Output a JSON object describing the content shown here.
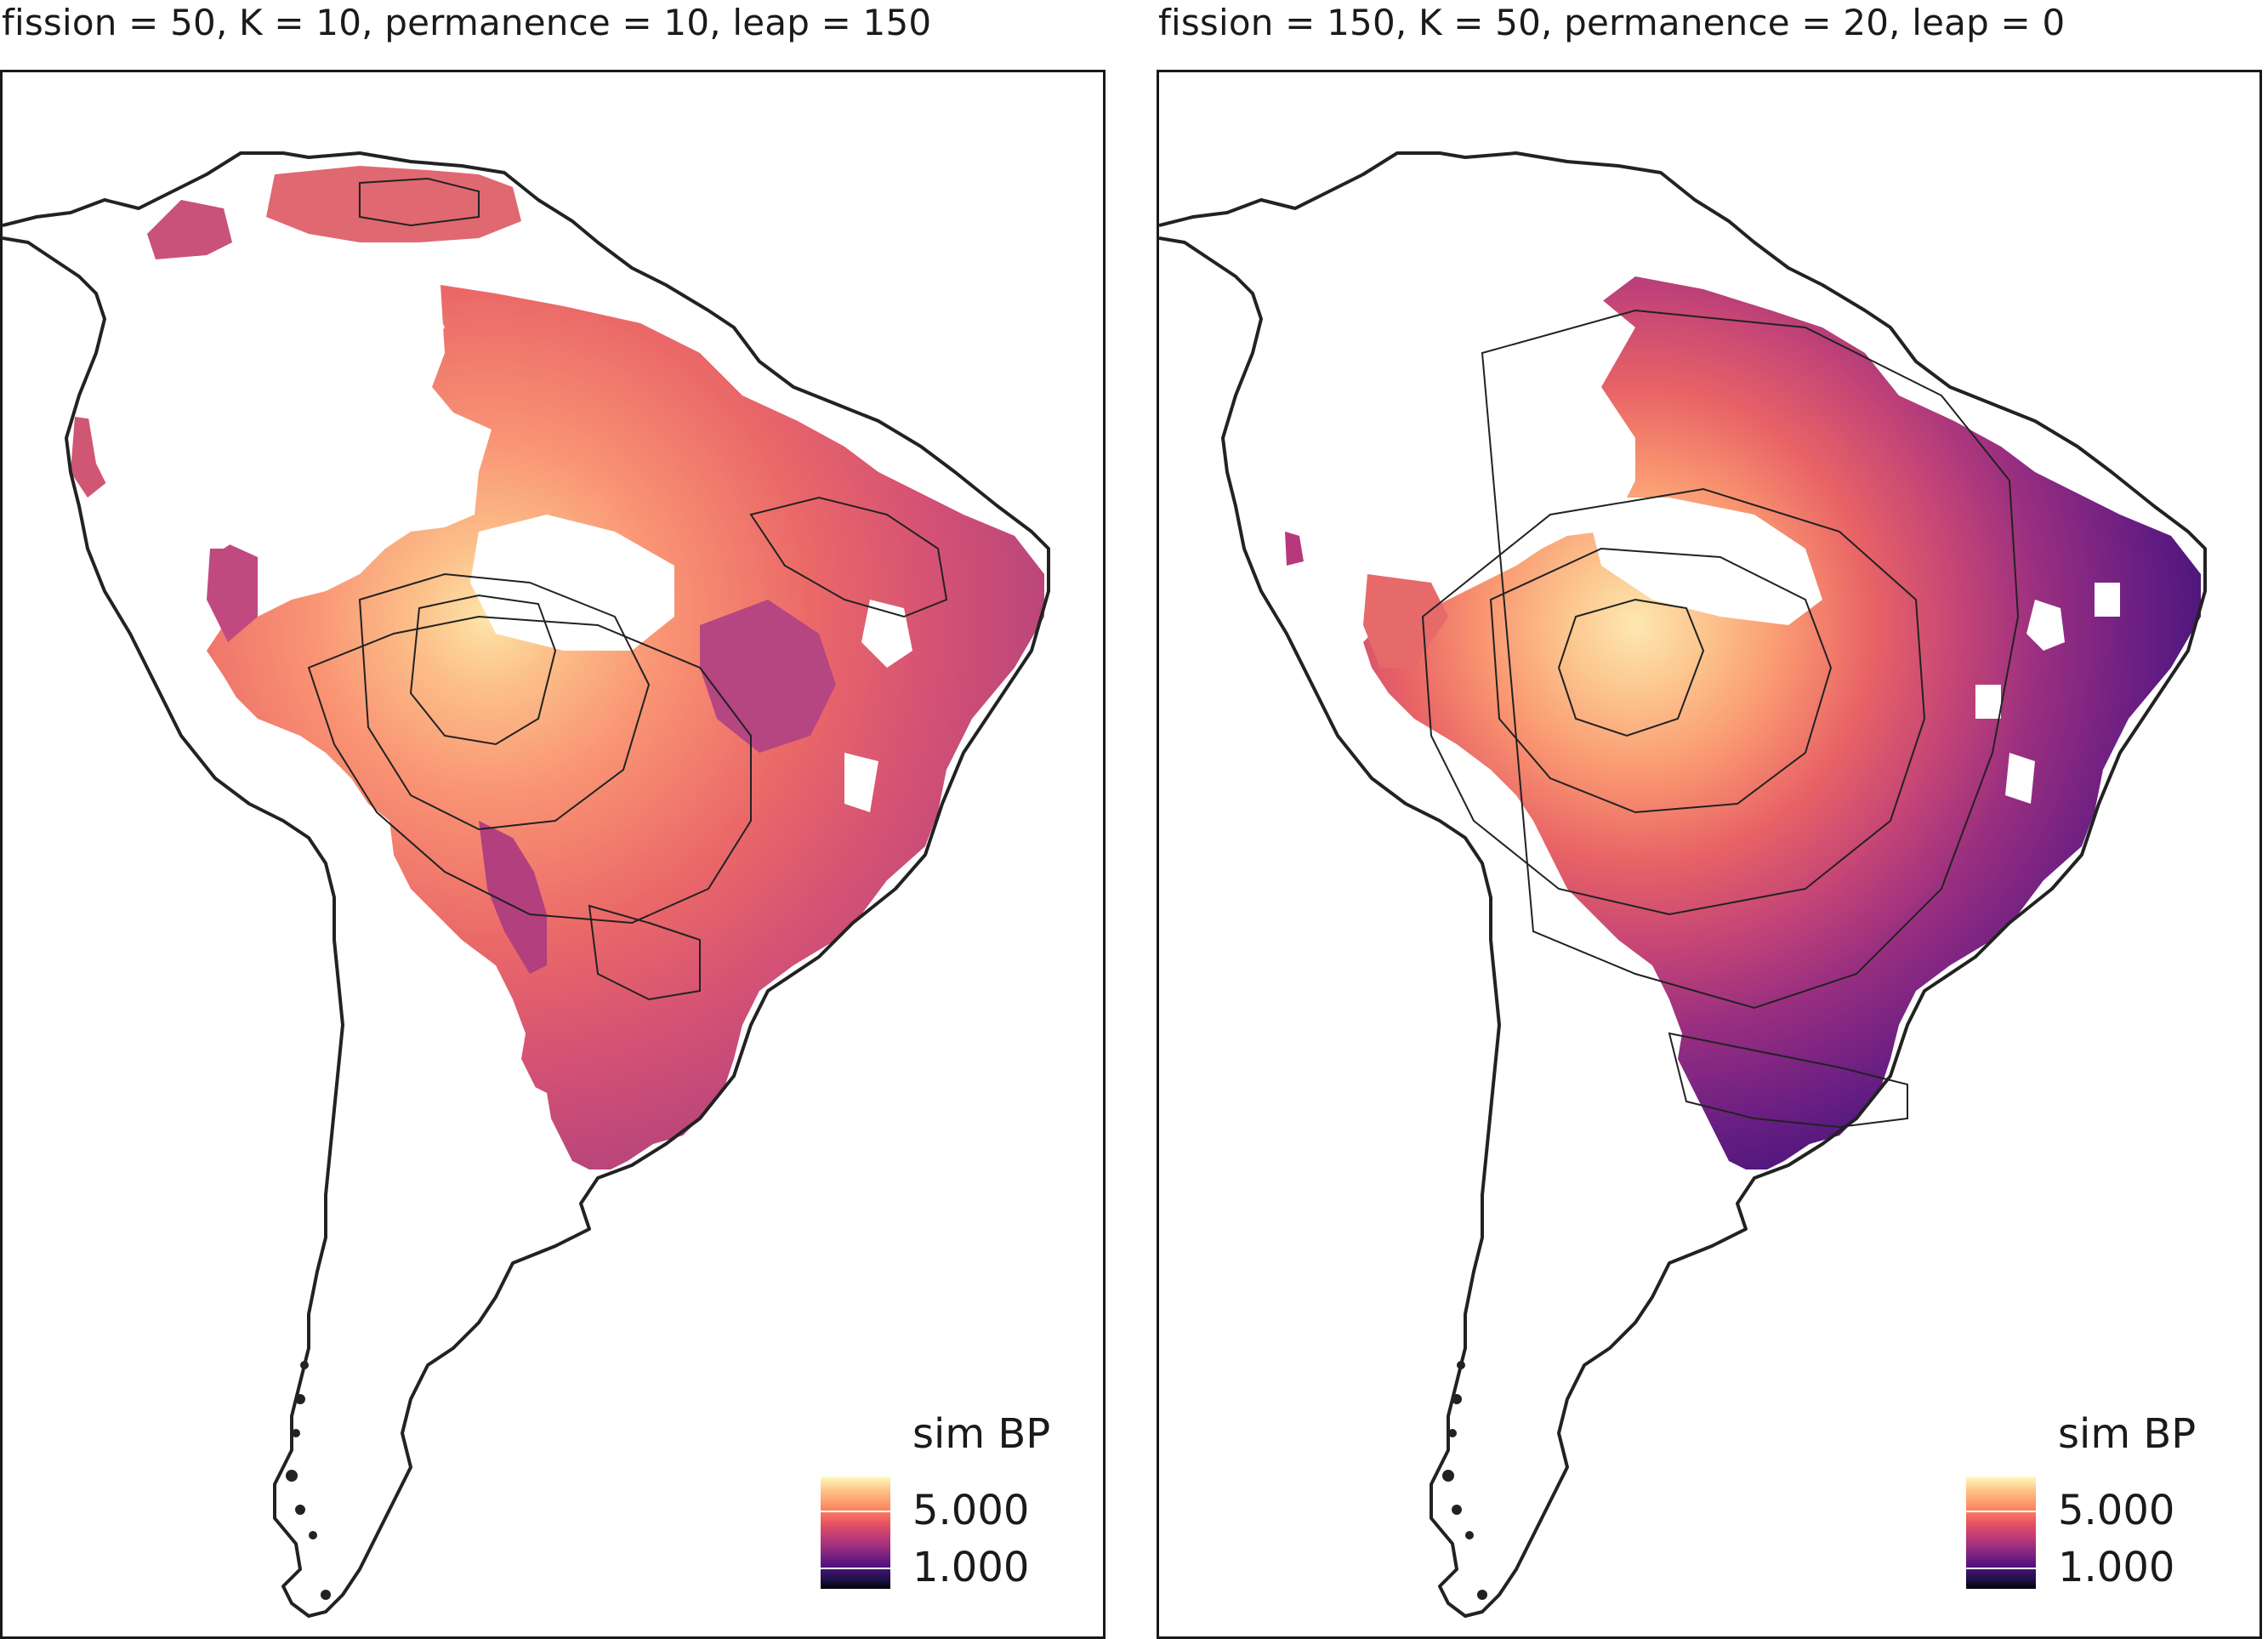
{
  "panels": [
    {
      "title": "fission = 50, K = 10, permanence = 10, leap = 150",
      "legend": {
        "title": "sim BP",
        "labels": [
          "5.000",
          "1.000"
        ]
      }
    },
    {
      "title": "fission = 150, K = 50, permanence = 20, leap = 0",
      "legend": {
        "title": "sim BP",
        "labels": [
          "5.000",
          "1.000"
        ]
      }
    }
  ],
  "colors": {
    "coastline": "#222222",
    "scale_high": "#fcfdbf",
    "scale_mid": "#e75263",
    "scale_low": "#000004"
  }
}
